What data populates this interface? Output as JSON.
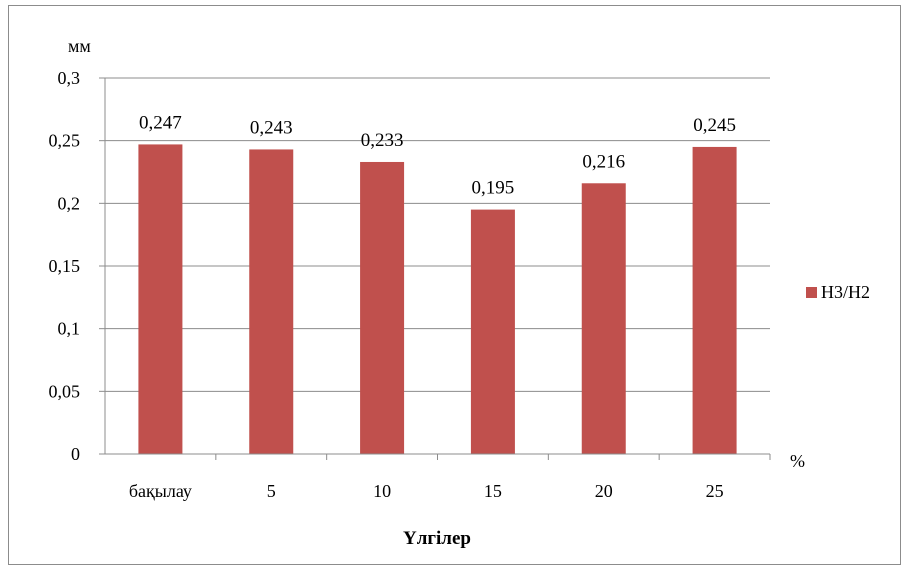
{
  "chart_data": {
    "type": "bar",
    "categories": [
      "бақылау",
      "5",
      "10",
      "15",
      "20",
      "25"
    ],
    "series": [
      {
        "name": "H3/H2",
        "values": [
          0.247,
          0.243,
          0.233,
          0.195,
          0.216,
          0.245
        ],
        "data_labels": [
          "0,247",
          "0,243",
          "0,233",
          "0,195",
          "0,216",
          "0,245"
        ],
        "color": "#C0504D"
      }
    ],
    "title": "",
    "xlabel": "Үлгілер",
    "ylabel": "мм",
    "x_unit_label": "%",
    "ylim": [
      0,
      0.3
    ],
    "yticks": [
      0,
      0.05,
      0.1,
      0.15,
      0.2,
      0.25,
      0.3
    ],
    "ytick_labels": [
      "0",
      "0,05",
      "0,1",
      "0,15",
      "0,2",
      "0,25",
      "0,3"
    ],
    "grid": true,
    "legend_position": "right"
  },
  "colors": {
    "bar": "#C0504D",
    "grid": "#8c8c8c",
    "axis": "#8c8c8c"
  }
}
